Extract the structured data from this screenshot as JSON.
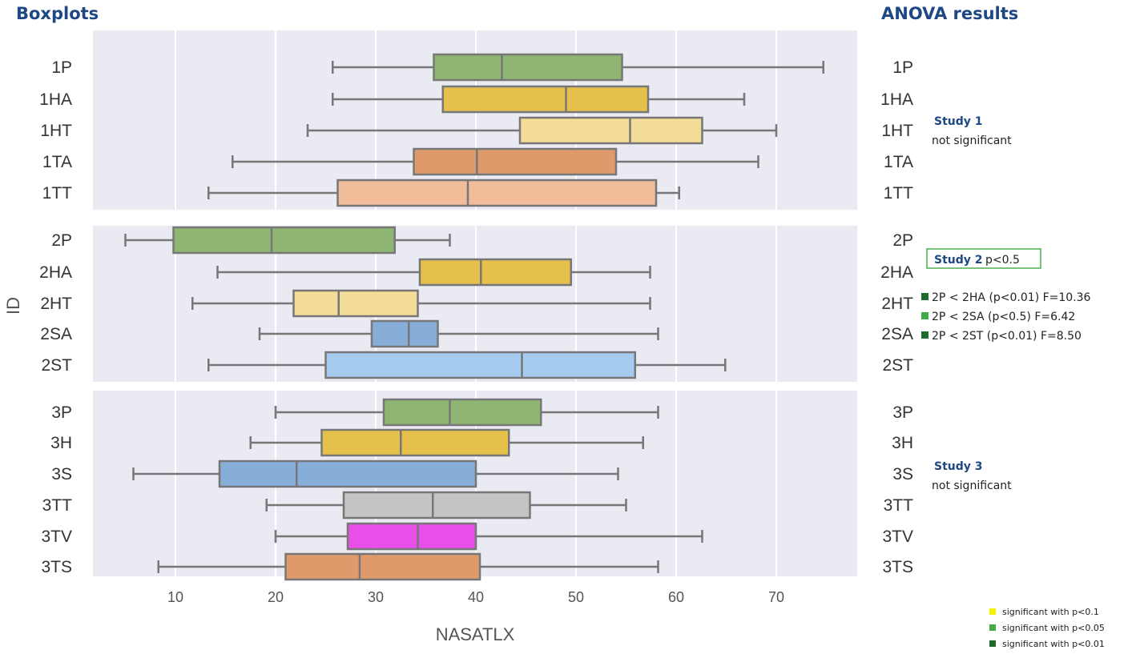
{
  "chart_data": {
    "type": "boxplot",
    "title": "Boxplots",
    "right_title": "ANOVA results",
    "xlabel": "NASATLX",
    "ylabel": "ID",
    "xlim": [
      2,
      78
    ],
    "xticks": [
      "10",
      "20",
      "30",
      "40",
      "50",
      "60",
      "70"
    ],
    "xtick_values": [
      10,
      20,
      30,
      40,
      50,
      60,
      70
    ],
    "grid": true,
    "panels": [
      {
        "study": "Study 1",
        "boxes": [
          {
            "id": "1P",
            "min": 25.7,
            "q1": 35.8,
            "median": 42.6,
            "q3": 54.6,
            "max": 74.7,
            "color": "#8fb573"
          },
          {
            "id": "1HA",
            "min": 25.7,
            "q1": 36.7,
            "median": 49.0,
            "q3": 57.2,
            "max": 66.8,
            "color": "#e5c04a"
          },
          {
            "id": "1HT",
            "min": 23.2,
            "q1": 44.4,
            "median": 55.4,
            "q3": 62.6,
            "max": 70.0,
            "color": "#f2dc98"
          },
          {
            "id": "1TA",
            "min": 15.7,
            "q1": 33.8,
            "median": 40.1,
            "q3": 54.0,
            "max": 68.2,
            "color": "#df9a6b"
          },
          {
            "id": "1TT",
            "min": 13.3,
            "q1": 26.2,
            "median": 39.2,
            "q3": 58.0,
            "max": 60.3,
            "color": "#f0bc9a"
          }
        ]
      },
      {
        "study": "Study 2",
        "boxes": [
          {
            "id": "2P",
            "min": 5.0,
            "q1": 9.8,
            "median": 19.6,
            "q3": 31.9,
            "max": 37.4,
            "color": "#8fb573"
          },
          {
            "id": "2HA",
            "min": 14.2,
            "q1": 34.4,
            "median": 40.5,
            "q3": 49.5,
            "max": 57.4,
            "color": "#e5c04a"
          },
          {
            "id": "2HT",
            "min": 11.7,
            "q1": 21.8,
            "median": 26.3,
            "q3": 34.2,
            "max": 57.4,
            "color": "#f2dc98"
          },
          {
            "id": "2SA",
            "min": 18.4,
            "q1": 29.6,
            "median": 33.3,
            "q3": 36.2,
            "max": 58.2,
            "color": "#86aed8"
          },
          {
            "id": "2ST",
            "min": 13.3,
            "q1": 25.0,
            "median": 44.6,
            "q3": 55.9,
            "max": 64.9,
            "color": "#a5cbf0"
          }
        ]
      },
      {
        "study": "Study 3",
        "boxes": [
          {
            "id": "3P",
            "min": 20.0,
            "q1": 30.8,
            "median": 37.4,
            "q3": 46.5,
            "max": 58.2,
            "color": "#8fb573"
          },
          {
            "id": "3H",
            "min": 17.5,
            "q1": 24.6,
            "median": 32.5,
            "q3": 43.3,
            "max": 56.7,
            "color": "#e5c04a"
          },
          {
            "id": "3S",
            "min": 5.8,
            "q1": 14.4,
            "median": 22.1,
            "q3": 40.0,
            "max": 54.2,
            "color": "#86aed8"
          },
          {
            "id": "3TT",
            "min": 19.1,
            "q1": 26.8,
            "median": 35.7,
            "q3": 45.4,
            "max": 55.0,
            "color": "#c4c4c4"
          },
          {
            "id": "3TV",
            "min": 20.0,
            "q1": 27.2,
            "median": 34.2,
            "q3": 40.0,
            "max": 62.6,
            "color": "#e84ee8"
          },
          {
            "id": "3TS",
            "min": 8.3,
            "q1": 21.0,
            "median": 28.4,
            "q3": 40.4,
            "max": 58.2,
            "color": "#df9a6b"
          }
        ]
      }
    ],
    "anova": {
      "study1": {
        "title": "Study 1",
        "result": "not significant"
      },
      "study2": {
        "title": "Study 2",
        "result": "p<0.5",
        "comparisons": [
          {
            "text": "2P < 2HA (p<0.01) F=10.36",
            "color": "#1e6b2a"
          },
          {
            "text": "2P < 2SA (p<0.5) F=6.42",
            "color": "#3fae49"
          },
          {
            "text": "2P < 2ST (p<0.01) F=8.50",
            "color": "#1e6b2a"
          }
        ]
      },
      "study3": {
        "title": "Study 3",
        "result": "not significant"
      }
    },
    "legend": [
      {
        "text": "significant with p<0.1",
        "color": "#f2f200"
      },
      {
        "text": "significant with p<0.05",
        "color": "#3fae49"
      },
      {
        "text": "significant with p<0.01",
        "color": "#1e6b2a"
      }
    ]
  }
}
